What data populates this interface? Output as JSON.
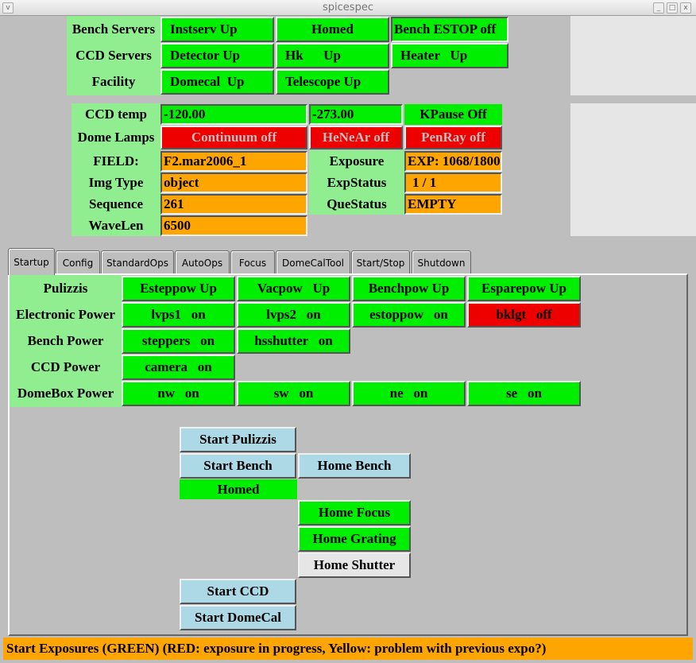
{
  "window": {
    "title": "spicespec",
    "menu_icon": "v",
    "minimize": "_",
    "maximize": "□",
    "close": "x"
  },
  "servers": {
    "rows": [
      {
        "label": "Bench Servers",
        "cells": [
          "Instserv Up",
          "Homed",
          "Bench ESTOP off"
        ]
      },
      {
        "label": "CCD Servers",
        "cells": [
          "Detector Up",
          "Hk      Up",
          "Heater   Up"
        ]
      },
      {
        "label": "Facility",
        "cells": [
          "Domecal  Up",
          "Telescope Up"
        ]
      }
    ]
  },
  "status": {
    "ccd_temp": {
      "label": "CCD temp",
      "value": "-120.00",
      "value2": "-273.00",
      "kpause": "KPause Off"
    },
    "dome_lamps": {
      "label": "Dome Lamps",
      "continuum": "Continuum off",
      "henear": "HeNeAr off",
      "penray": "PenRay off"
    },
    "field": {
      "label": "FIELD:",
      "value": "F2.mar2006_1"
    },
    "exposure": {
      "label": "Exposure",
      "value": "EXP: 1068/1800"
    },
    "img_type": {
      "label": "Img Type",
      "value": "object"
    },
    "exp_status": {
      "label": "ExpStatus",
      "value": " 1 / 1"
    },
    "sequence": {
      "label": "Sequence",
      "value": "261"
    },
    "que_status": {
      "label": "QueStatus",
      "value": "EMPTY"
    },
    "wavelen": {
      "label": "WaveLen",
      "value": "6500"
    }
  },
  "tabs": [
    "Startup",
    "Config",
    "StandardOps",
    "AutoOps",
    "Focus",
    "DomeCalTool",
    "Start/Stop",
    "Shutdown"
  ],
  "active_tab": "Startup",
  "power": {
    "rows": [
      {
        "label": "Pulizzis",
        "cells": [
          "Esteppow Up",
          "Vacpow   Up",
          "Benchpow Up",
          "Esparepow Up"
        ]
      },
      {
        "label": "Electronic Power",
        "cells": [
          "lvps1   on",
          "lvps2   on",
          "estoppow   on",
          "bklgt   off"
        ]
      },
      {
        "label": "Bench Power",
        "cells": [
          "steppers   on",
          "hsshutter   on"
        ]
      },
      {
        "label": "CCD Power",
        "cells": [
          "camera   on"
        ]
      },
      {
        "label": "DomeBox Power",
        "cells": [
          "nw   on",
          "sw   on",
          "ne   on",
          "se   on"
        ]
      }
    ]
  },
  "actions": {
    "start_pulizzis": "Start Pulizzis",
    "start_bench": "Start Bench",
    "home_bench": "Home Bench",
    "homed": "Homed",
    "home_focus": "Home Focus",
    "home_grating": "Home Grating",
    "home_shutter": "Home Shutter",
    "start_ccd": "Start CCD",
    "start_domecal": "Start DomeCal"
  },
  "statusbar": "Start Exposures (GREEN)  (RED: exposure in progress, Yellow: problem with previous expo?)",
  "colors": {
    "green": "#00ee00",
    "label_green": "#90ee90",
    "red": "#ee0000",
    "orange": "#ffa500",
    "light_blue": "#add8e6"
  }
}
